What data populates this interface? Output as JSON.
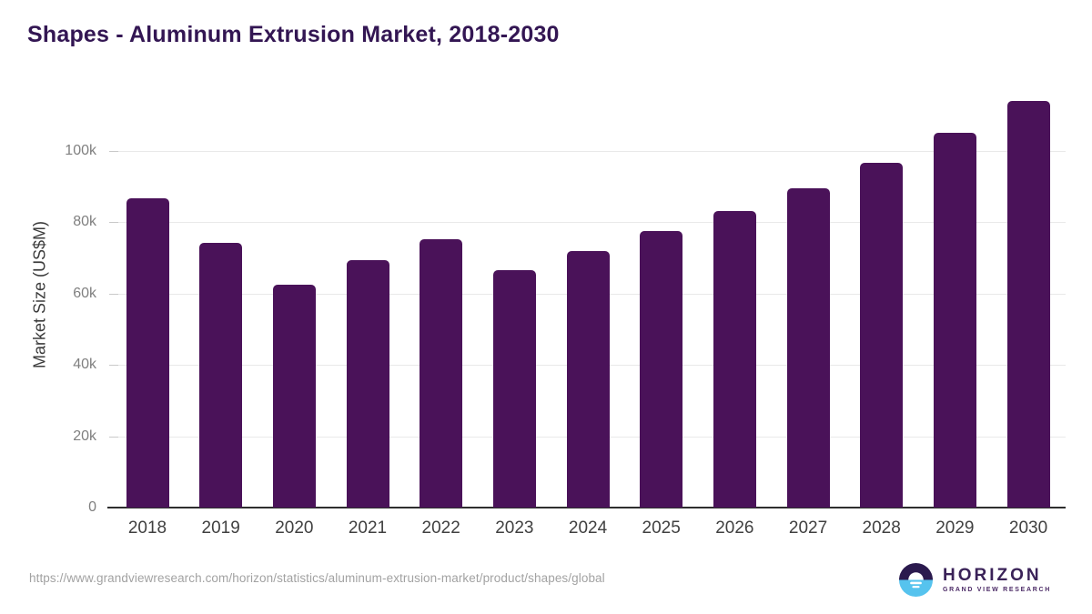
{
  "header": {
    "title": "Shapes - Aluminum Extrusion Market, 2018-2030"
  },
  "chart_data": {
    "type": "bar",
    "title": "Shapes - Aluminum Extrusion Market, 2018-2030",
    "categories": [
      "2018",
      "2019",
      "2020",
      "2021",
      "2022",
      "2023",
      "2024",
      "2025",
      "2026",
      "2027",
      "2028",
      "2029",
      "2030"
    ],
    "values": [
      86700,
      74100,
      62500,
      69300,
      75100,
      66600,
      72000,
      77400,
      83000,
      89500,
      96700,
      104900,
      113900
    ],
    "unit": "US$M",
    "xlabel": "",
    "ylabel": "Market Size (US$M)",
    "y_tick_values": [
      0,
      20000,
      40000,
      60000,
      80000,
      100000
    ],
    "y_tick_labels": [
      "0",
      "20k",
      "40k",
      "60k",
      "80k",
      "100k"
    ],
    "ylim": [
      0,
      117000
    ],
    "grid": "horizontal",
    "legend": "none",
    "bar_corner_radius": "rounded-top"
  },
  "footer": {
    "source_url": "https://www.grandviewresearch.com/horizon/statistics/aluminum-extrusion-market/product/shapes/global",
    "logo": {
      "brand": "HORIZON",
      "tagline": "GRAND VIEW RESEARCH"
    }
  },
  "colors": {
    "bar": "#4A1259",
    "title": "#331653",
    "axis_title": "#3c3c3c",
    "ytick": "#808080",
    "xtick": "#404040",
    "gridline": "#e9e9e9",
    "tick": "#c9c9c9",
    "baseline": "#2e2e2e",
    "url": "#a2a2a2",
    "logo_purple": "#2B1A4E",
    "logo_blue": "#56C3EE",
    "logo_text": "#3A2258",
    "logo_tagline": "#4B2A66"
  }
}
